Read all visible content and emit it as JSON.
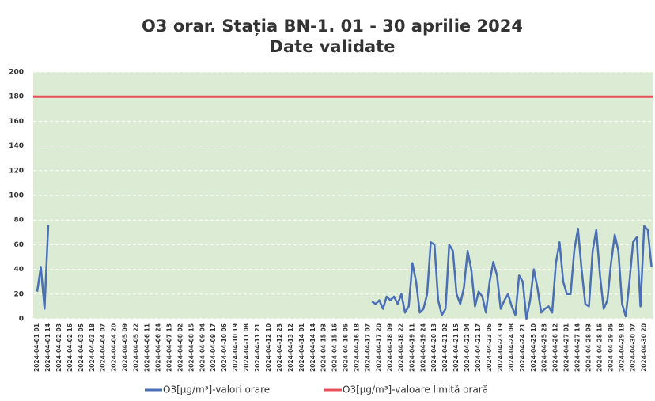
{
  "chart_data": {
    "type": "line",
    "title": "O3 orar. Stația BN-1. 01 - 30 aprilie 2024",
    "subtitle": "Date validate",
    "categories": [
      "2024-04-01 01",
      null,
      null,
      "2024-04-01 14",
      null,
      null,
      "2024-04-02 03",
      null,
      null,
      "2024-04-02 16",
      null,
      null,
      "2024-04-03 05",
      null,
      null,
      "2024-04-03 18",
      null,
      null,
      "2024-04-04 07",
      null,
      null,
      "2024-04-04 20",
      null,
      null,
      "2024-04-05 09",
      null,
      null,
      "2024-04-05 22",
      null,
      null,
      "2024-04-06 11",
      null,
      null,
      "2024-04-06 24",
      null,
      null,
      "2024-04-07 13",
      null,
      null,
      "2024-04-08 02",
      null,
      null,
      "2024-04-08 15",
      null,
      null,
      "2024-04-09 04",
      null,
      null,
      "2024-04-09 17",
      null,
      null,
      "2024-04-10 06",
      null,
      null,
      "2024-04-10 19",
      null,
      null,
      "2024-04-11 08",
      null,
      null,
      "2024-04-11 21",
      null,
      null,
      "2024-04-12 10",
      null,
      null,
      "2024-04-12 23",
      null,
      null,
      "2024-04-13 12",
      null,
      null,
      "2024-04-14 01",
      null,
      null,
      "2024-04-14 14",
      null,
      null,
      "2024-04-15 03",
      null,
      null,
      "2024-04-15 16",
      null,
      null,
      "2024-04-16 05",
      null,
      null,
      "2024-04-16 18",
      null,
      null,
      "2024-04-17 07",
      null,
      null,
      "2024-04-17 20",
      null,
      null,
      "2024-04-18 09",
      null,
      null,
      "2024-04-18 22",
      null,
      null,
      "2024-04-19 11",
      null,
      null,
      "2024-04-19 24",
      null,
      null,
      "2024-04-20 13",
      null,
      null,
      "2024-04-21 02",
      null,
      null,
      "2024-04-21 15",
      null,
      null,
      "2024-04-22 04",
      null,
      null,
      "2024-04-22 17",
      null,
      null,
      "2024-04-23 06",
      null,
      null,
      "2024-04-23 19",
      null,
      null,
      "2024-04-24 08",
      null,
      null,
      "2024-04-24 21",
      null,
      null,
      "2024-04-25 10",
      null,
      null,
      "2024-04-25 23",
      null,
      null,
      "2024-04-26 12",
      null,
      null,
      "2024-04-27 01",
      null,
      null,
      "2024-04-27 14",
      null,
      null,
      "2024-04-28 03",
      null,
      null,
      "2024-04-28 16",
      null,
      null,
      "2024-04-29 05",
      null,
      null,
      "2024-04-29 18",
      null,
      null,
      "2024-04-30 07",
      null,
      null,
      "2024-04-30 20",
      null,
      null
    ],
    "series": [
      {
        "name": "O3[µg/m³]-valori orare",
        "color": "#4a6fb5",
        "values": [
          22,
          42,
          8,
          76,
          null,
          null,
          null,
          null,
          null,
          null,
          null,
          null,
          null,
          null,
          null,
          null,
          null,
          null,
          null,
          null,
          null,
          null,
          null,
          null,
          null,
          null,
          null,
          null,
          null,
          null,
          null,
          null,
          null,
          null,
          null,
          null,
          null,
          null,
          null,
          null,
          null,
          null,
          null,
          null,
          null,
          null,
          null,
          null,
          null,
          null,
          null,
          null,
          null,
          null,
          null,
          null,
          null,
          null,
          null,
          null,
          null,
          null,
          null,
          null,
          null,
          null,
          null,
          null,
          null,
          null,
          null,
          null,
          null,
          null,
          null,
          null,
          null,
          null,
          null,
          null,
          null,
          null,
          null,
          null,
          null,
          null,
          null,
          null,
          null,
          null,
          null,
          14,
          12,
          15,
          8,
          18,
          15,
          18,
          12,
          20,
          5,
          10,
          45,
          30,
          5,
          8,
          20,
          62,
          60,
          15,
          3,
          8,
          60,
          55,
          20,
          12,
          25,
          55,
          40,
          10,
          22,
          18,
          5,
          30,
          46,
          35,
          8,
          15,
          20,
          10,
          3,
          35,
          30,
          0,
          15,
          40,
          25,
          5,
          8,
          10,
          5,
          45,
          62,
          30,
          20,
          20,
          55,
          73,
          40,
          12,
          10,
          55,
          72,
          35,
          8,
          15,
          45,
          68,
          55,
          12,
          2,
          30,
          62,
          66,
          10,
          75,
          72,
          42
        ]
      }
    ],
    "limit": {
      "name": "O3[µg/m³]-valoare limită orară",
      "color": "#e8505b",
      "value": 180
    },
    "ylim": [
      0,
      200
    ],
    "yticks": [
      0,
      20,
      40,
      60,
      80,
      100,
      120,
      140,
      160,
      180,
      200
    ],
    "grid": true,
    "plot_background": "#dcebd3",
    "legend": "bottom"
  }
}
